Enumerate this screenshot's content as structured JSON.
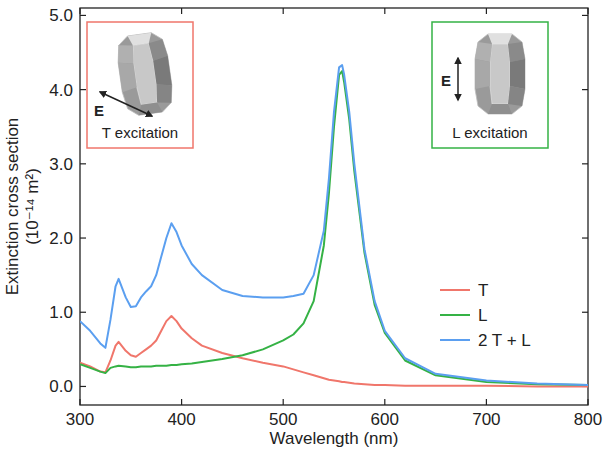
{
  "chart_data": {
    "type": "line",
    "x_label": "Wavelength (nm)",
    "y_label": [
      "Extinction cross section",
      "(10⁻¹⁴ m²)"
    ],
    "xlim": [
      300,
      800
    ],
    "ylim": [
      -0.25,
      5.1
    ],
    "xticks": [
      300,
      400,
      500,
      600,
      700,
      800
    ],
    "yticks": [
      {
        "value": 0,
        "label": "0.0"
      },
      {
        "value": 1,
        "label": "1.0"
      },
      {
        "value": 2,
        "label": "2.0"
      },
      {
        "value": 3,
        "label": "3.0"
      },
      {
        "value": 4,
        "label": "4.0"
      },
      {
        "value": 5,
        "label": "5.0"
      }
    ],
    "grid": false,
    "legend": "right",
    "x": [
      300,
      310,
      320,
      325,
      330,
      335,
      338,
      345,
      350,
      355,
      360,
      365,
      370,
      375,
      380,
      385,
      390,
      395,
      400,
      410,
      420,
      440,
      460,
      480,
      500,
      510,
      520,
      530,
      540,
      545,
      550,
      555,
      558,
      560,
      565,
      570,
      580,
      590,
      600,
      620,
      650,
      700,
      750,
      800
    ],
    "series": [
      {
        "name": "T",
        "color": "#f0766b",
        "values": [
          0.32,
          0.27,
          0.2,
          0.19,
          0.35,
          0.55,
          0.6,
          0.48,
          0.42,
          0.4,
          0.45,
          0.5,
          0.55,
          0.62,
          0.75,
          0.88,
          0.95,
          0.88,
          0.78,
          0.65,
          0.55,
          0.45,
          0.38,
          0.32,
          0.27,
          0.23,
          0.19,
          0.15,
          0.11,
          0.09,
          0.08,
          0.07,
          0.06,
          0.06,
          0.05,
          0.04,
          0.03,
          0.02,
          0.02,
          0.01,
          0.01,
          0.01,
          0,
          0
        ]
      },
      {
        "name": "L",
        "color": "#35b245",
        "values": [
          0.3,
          0.25,
          0.2,
          0.18,
          0.25,
          0.27,
          0.28,
          0.27,
          0.26,
          0.26,
          0.27,
          0.27,
          0.27,
          0.28,
          0.28,
          0.28,
          0.29,
          0.29,
          0.3,
          0.31,
          0.33,
          0.37,
          0.42,
          0.5,
          0.62,
          0.7,
          0.85,
          1.15,
          1.9,
          2.6,
          3.5,
          4.2,
          4.25,
          4.1,
          3.6,
          2.9,
          1.8,
          1.1,
          0.72,
          0.35,
          0.15,
          0.06,
          0.03,
          0.02
        ]
      },
      {
        "name": "2 T + L",
        "color": "#5b9ff0",
        "values": [
          0.88,
          0.75,
          0.58,
          0.52,
          0.9,
          1.35,
          1.45,
          1.2,
          1.07,
          1.08,
          1.2,
          1.28,
          1.35,
          1.5,
          1.75,
          2.0,
          2.2,
          2.08,
          1.9,
          1.65,
          1.5,
          1.3,
          1.22,
          1.2,
          1.2,
          1.22,
          1.25,
          1.5,
          2.1,
          2.8,
          3.7,
          4.3,
          4.33,
          4.2,
          3.7,
          3.0,
          1.85,
          1.15,
          0.75,
          0.38,
          0.17,
          0.08,
          0.04,
          0.02
        ]
      }
    ],
    "annotations": [
      {
        "text": "T excitation",
        "field": "E",
        "color": "#f0766b"
      },
      {
        "text": "L excitation",
        "field": "E",
        "color": "#35b245"
      }
    ]
  }
}
